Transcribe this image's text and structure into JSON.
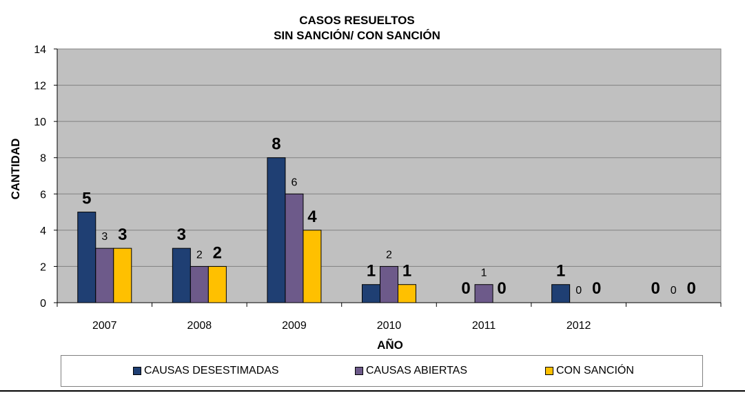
{
  "chart_data": {
    "type": "bar",
    "title": [
      "CASOS RESUELTOS",
      "SIN SANCIÓN/ CON SANCIÓN"
    ],
    "xlabel": "AÑO",
    "ylabel": "CANTIDAD",
    "ylim": [
      0,
      14
    ],
    "yticks": [
      0,
      2,
      4,
      6,
      8,
      10,
      12,
      14
    ],
    "grid": true,
    "categories": [
      "2007",
      "2008",
      "2009",
      "2010",
      "2011",
      "2012",
      ""
    ],
    "series": [
      {
        "name": "CAUSAS DESESTIMADAS",
        "color": "#1f3f73",
        "label_style": "large",
        "values": [
          5,
          3,
          8,
          1,
          0,
          1,
          0
        ],
        "labels": [
          "5",
          "3",
          "8",
          "1",
          "0",
          "1",
          "0"
        ]
      },
      {
        "name": "CAUSAS ABIERTAS",
        "color": "#6d5a8a",
        "label_style": "small",
        "values": [
          3,
          2,
          6,
          2,
          1,
          0,
          0
        ],
        "labels": [
          "3",
          "2",
          "6",
          "2",
          "1",
          "0",
          "0"
        ]
      },
      {
        "name": "CON SANCIÓN",
        "color": "#ffc000",
        "label_style": "large",
        "values": [
          3,
          2,
          4,
          1,
          0,
          0,
          0
        ],
        "labels": [
          "3",
          "2",
          "4",
          "1",
          "0",
          "0",
          "0"
        ]
      }
    ],
    "legend_position": "bottom"
  }
}
